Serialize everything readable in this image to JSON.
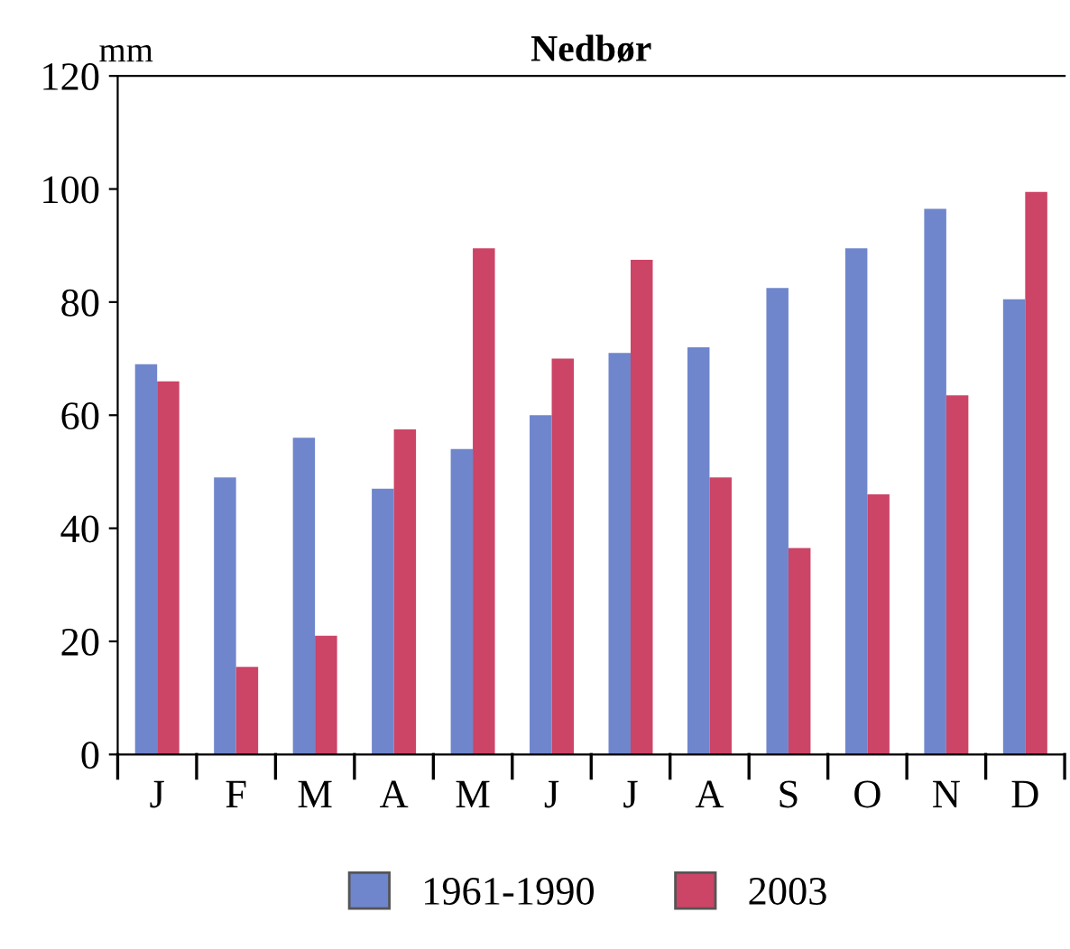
{
  "chart_data": {
    "type": "bar",
    "title": "Nedbør",
    "ylabel": "mm",
    "categories": [
      "J",
      "F",
      "M",
      "A",
      "M",
      "J",
      "J",
      "A",
      "S",
      "O",
      "N",
      "D"
    ],
    "series": [
      {
        "name": "1961-1990",
        "color": "#6f86cc",
        "values": [
          69,
          49,
          56,
          47,
          54,
          60,
          71,
          72,
          82.5,
          89.5,
          96.5,
          80.5
        ]
      },
      {
        "name": "2003",
        "color": "#cc4466",
        "values": [
          66,
          15.5,
          21,
          57.5,
          89.5,
          70,
          87.5,
          49,
          36.5,
          46,
          63.5,
          99.5
        ]
      }
    ],
    "ylim": [
      0,
      120
    ],
    "yticks": [
      0,
      20,
      40,
      60,
      80,
      100,
      120
    ],
    "grid": false,
    "legend": "bottom"
  }
}
